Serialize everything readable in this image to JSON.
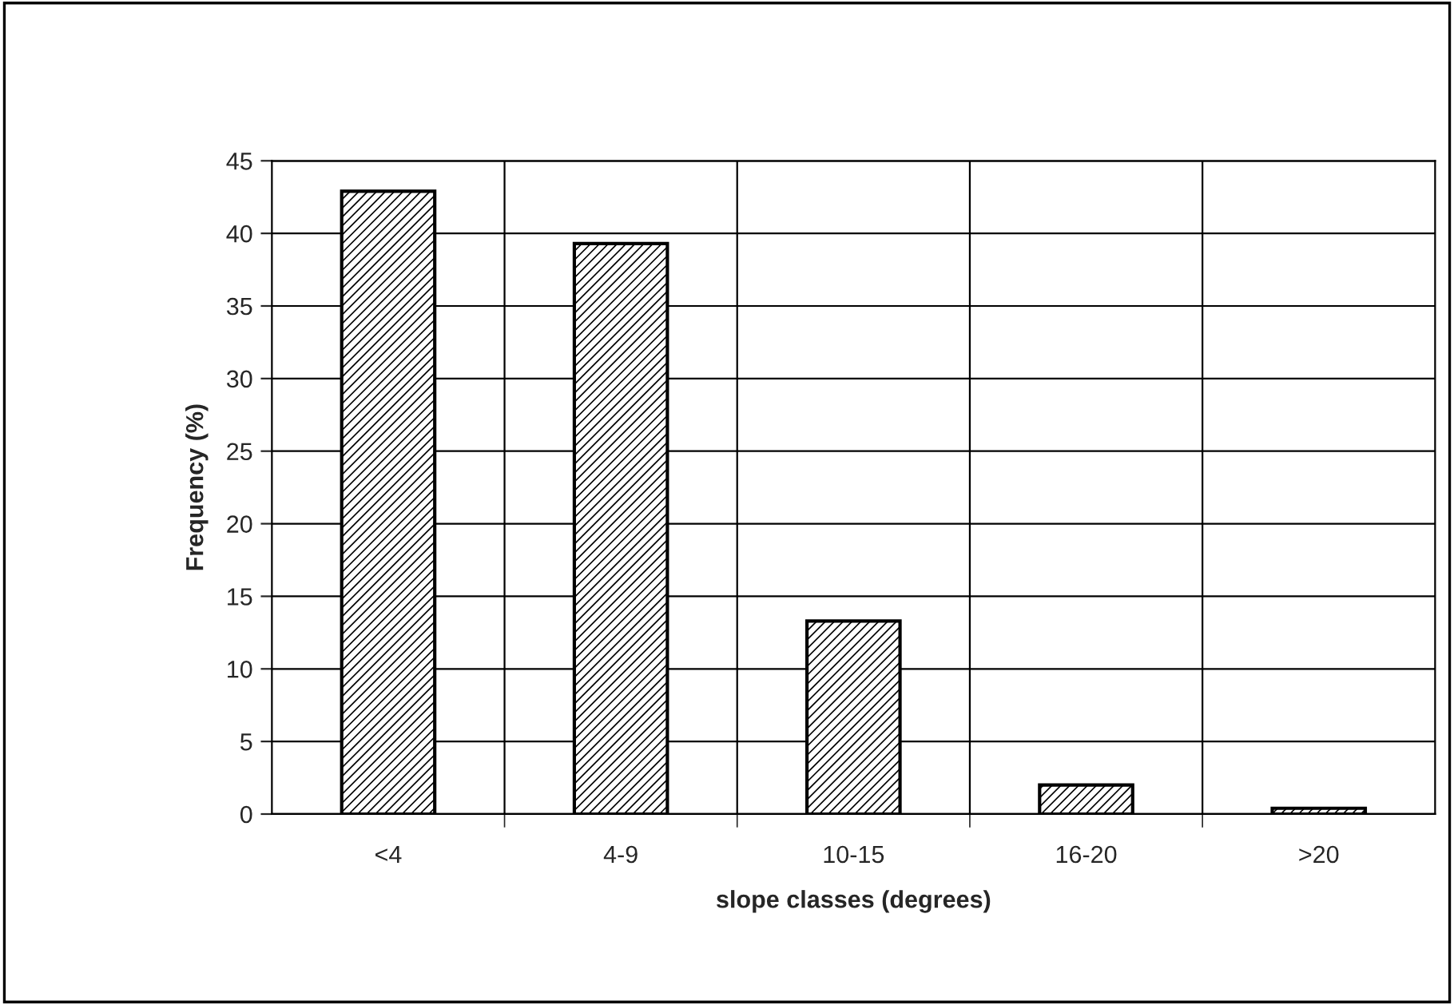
{
  "chart_data": {
    "type": "bar",
    "xlabel": "slope classes (degrees)",
    "ylabel": "Frequency (%)",
    "categories": [
      "<4",
      "4-9",
      "10-15",
      "16-20",
      ">20"
    ],
    "values": [
      42.9,
      39.3,
      13.3,
      2.0,
      0.4
    ],
    "color": "#000000",
    "ylim": [
      0,
      45
    ],
    "yticks": [
      0,
      5,
      10,
      15,
      20,
      25,
      30,
      35,
      40,
      45
    ],
    "grid": true
  }
}
